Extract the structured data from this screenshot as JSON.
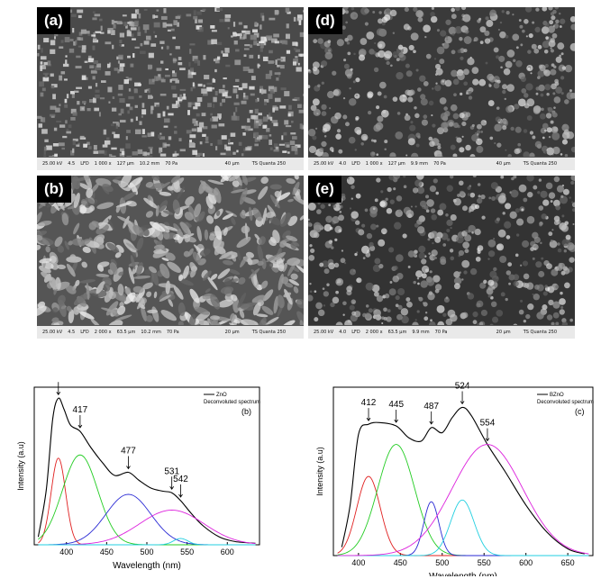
{
  "sem_panels": [
    {
      "id": "a",
      "label": "(a)",
      "infobar": {
        "hv": "25.00 kV",
        "spot": "4.5",
        "det": "LFD",
        "mag": "1 000 x",
        "hfw": "127 µm",
        "wd": "10.2 mm",
        "pressure": "70 Pa",
        "scale": "40 µm",
        "instrument": "TS Quanta 250"
      }
    },
    {
      "id": "b",
      "label": "(b)",
      "infobar": {
        "hv": "25.00 kV",
        "spot": "4.5",
        "det": "LFD",
        "mag": "2 000 x",
        "hfw": "63.5 µm",
        "wd": "10.2 mm",
        "pressure": "70 Pa",
        "scale": "20 µm",
        "instrument": "TS Quanta 250"
      }
    },
    {
      "id": "d",
      "label": "(d)",
      "infobar": {
        "hv": "25.00 kV",
        "spot": "4.0",
        "det": "LFD",
        "mag": "1 000 x",
        "hfw": "127 µm",
        "wd": "9.9 mm",
        "pressure": "70 Pa",
        "scale": "40 µm",
        "instrument": "TS Quanta 250"
      }
    },
    {
      "id": "e",
      "label": "(e)",
      "infobar": {
        "hv": "25.00 kV",
        "spot": "4.0",
        "det": "LFD",
        "mag": "2 000 x",
        "hfw": "63.5 µm",
        "wd": "9.9 mm",
        "pressure": "70 Pa",
        "scale": "20 µm",
        "instrument": "TS Quanta 250"
      }
    }
  ],
  "chart_data": [
    {
      "type": "line",
      "panel_label": "(b)",
      "xlabel": "Wavelength (nm)",
      "ylabel": "Intensity (a.u)",
      "xlim": [
        360,
        640
      ],
      "ylim": [
        0,
        1.0
      ],
      "xticks": [
        400,
        450,
        500,
        550,
        600
      ],
      "legend": [
        "ZnO",
        "Deconvoluted spectrum"
      ],
      "legend_position": "top-right",
      "peak_labels": [
        390,
        417,
        477,
        531,
        542
      ],
      "series": [
        {
          "color": "#000000",
          "x": [
            365,
            375,
            383,
            390,
            397,
            405,
            417,
            430,
            445,
            460,
            477,
            490,
            505,
            520,
            531,
            542,
            555,
            570,
            590,
            610,
            635
          ],
          "y": [
            0.05,
            0.35,
            0.8,
            0.93,
            0.86,
            0.76,
            0.72,
            0.62,
            0.52,
            0.44,
            0.46,
            0.41,
            0.36,
            0.34,
            0.33,
            0.28,
            0.2,
            0.12,
            0.05,
            0.02,
            0.01
          ]
        },
        {
          "color": "#e02020",
          "center": 390,
          "width": 9,
          "amp": 0.55
        },
        {
          "color": "#22cc22",
          "center": 417,
          "width": 22,
          "amp": 0.57
        },
        {
          "color": "#2a2ad4",
          "center": 477,
          "width": 28,
          "amp": 0.32
        },
        {
          "color": "#dd22dd",
          "center": 531,
          "width": 40,
          "amp": 0.22
        },
        {
          "color": "#22cfe0",
          "center": 542,
          "width": 9,
          "amp": 0.04
        }
      ]
    },
    {
      "type": "line",
      "panel_label": "(c)",
      "xlabel": "Wavelength (nm)",
      "ylabel": "Intensity (a.u)",
      "xlim": [
        370,
        680
      ],
      "ylim": [
        0,
        1.0
      ],
      "xticks": [
        400,
        450,
        500,
        550,
        600,
        650
      ],
      "legend": [
        "BZnO",
        "Deconvoluted spectrum"
      ],
      "legend_position": "top-right",
      "peak_labels": [
        412,
        445,
        487,
        524,
        554
      ],
      "series": [
        {
          "color": "#000000",
          "x": [
            380,
            390,
            400,
            412,
            425,
            445,
            460,
            475,
            487,
            500,
            512,
            524,
            535,
            554,
            575,
            600,
            625,
            650,
            670
          ],
          "y": [
            0.05,
            0.3,
            0.72,
            0.78,
            0.79,
            0.77,
            0.7,
            0.68,
            0.76,
            0.73,
            0.82,
            0.88,
            0.83,
            0.66,
            0.5,
            0.3,
            0.14,
            0.04,
            0.01
          ]
        },
        {
          "color": "#e02020",
          "center": 412,
          "width": 14,
          "amp": 0.47
        },
        {
          "color": "#22cc22",
          "center": 445,
          "width": 22,
          "amp": 0.66
        },
        {
          "color": "#2a2ad4",
          "center": 487,
          "width": 9,
          "amp": 0.32
        },
        {
          "color": "#22cfe0",
          "center": 524,
          "width": 14,
          "amp": 0.33
        },
        {
          "color": "#dd22dd",
          "center": 554,
          "width": 42,
          "amp": 0.66
        }
      ]
    }
  ]
}
